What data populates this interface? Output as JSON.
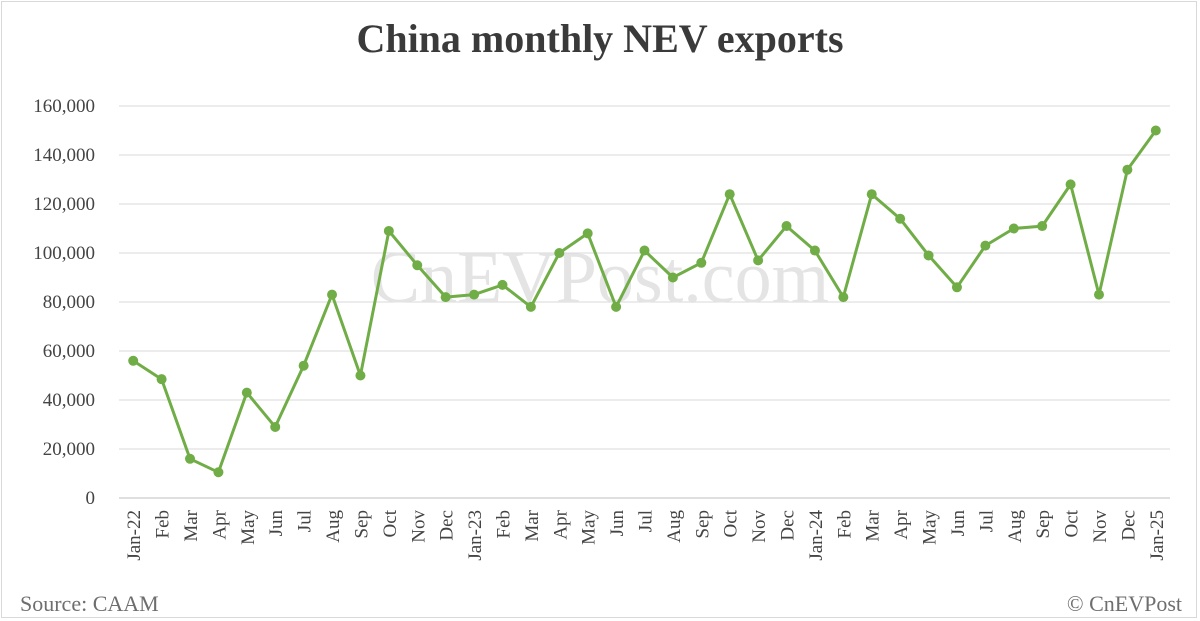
{
  "chart_data": {
    "type": "line",
    "title": "China monthly NEV exports",
    "xlabel": "",
    "ylabel": "",
    "ylim": [
      0,
      160000
    ],
    "y_ticks": [
      "0",
      "20,000",
      "40,000",
      "60,000",
      "80,000",
      "100,000",
      "120,000",
      "140,000",
      "160,000"
    ],
    "y_tick_values": [
      0,
      20000,
      40000,
      60000,
      80000,
      100000,
      120000,
      140000,
      160000
    ],
    "grid": true,
    "legend": "none",
    "categories": [
      "Jan-22",
      "Feb",
      "Mar",
      "Apr",
      "May",
      "Jun",
      "Jul",
      "Aug",
      "Sep",
      "Oct",
      "Nov",
      "Dec",
      "Jan-23",
      "Feb",
      "Mar",
      "Apr",
      "May",
      "Jun",
      "Jul",
      "Aug",
      "Sep",
      "Oct",
      "Nov",
      "Dec",
      "Jan-24",
      "Feb",
      "Mar",
      "Apr",
      "May",
      "Jun",
      "Jul",
      "Aug",
      "Sep",
      "Oct",
      "Nov",
      "Dec",
      "Jan-25"
    ],
    "series": [
      {
        "color": "#70ad47",
        "values": [
          56000,
          48500,
          16000,
          10500,
          43000,
          29000,
          54000,
          83000,
          50000,
          109000,
          95000,
          82000,
          83000,
          87000,
          78000,
          100000,
          108000,
          78000,
          101000,
          90000,
          96000,
          124000,
          97000,
          111000,
          101000,
          82000,
          124000,
          114000,
          99000,
          86000,
          103000,
          110000,
          111000,
          128000,
          83000,
          134000,
          150000
        ]
      }
    ]
  },
  "watermark": "CnEVPost.com",
  "footer": {
    "source": "Source: CAAM",
    "copyright": "© CnEVPost"
  }
}
